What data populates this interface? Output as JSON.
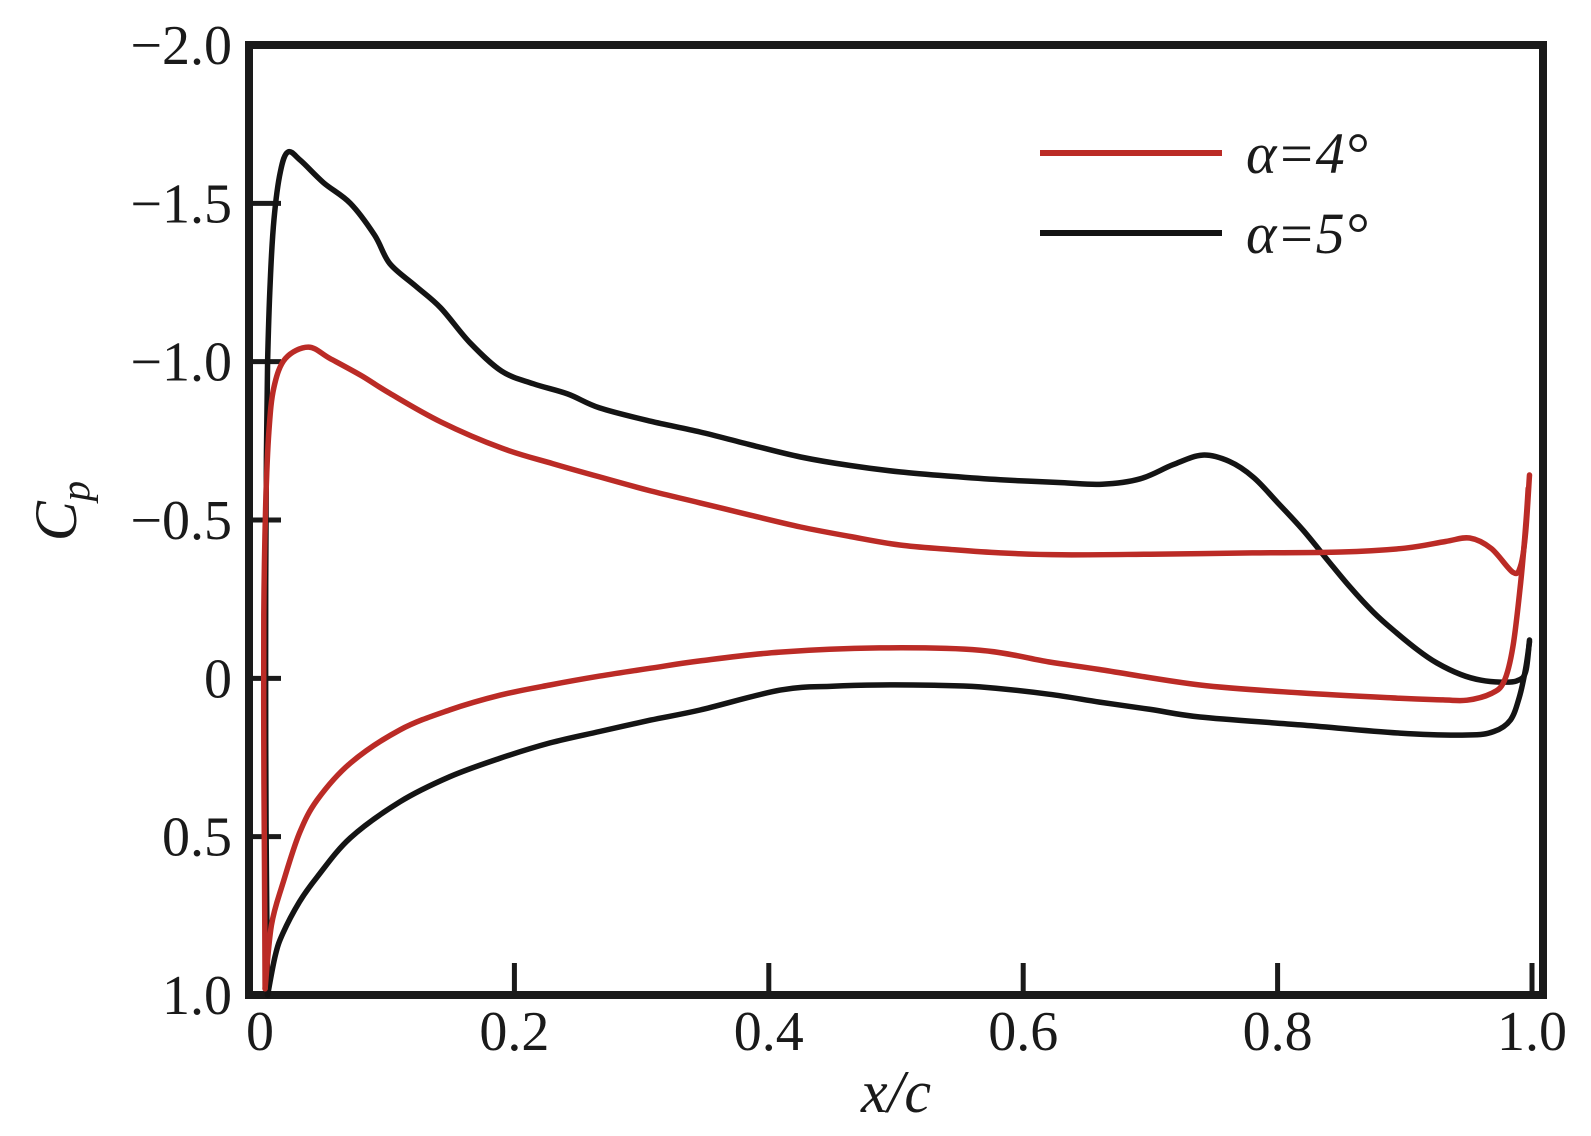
{
  "figure": {
    "background_color": "#ffffff",
    "axis_color": "#1a1a1a"
  },
  "chart_data": {
    "type": "line",
    "title": "",
    "xlabel": "x/c",
    "ylabel": "Cp",
    "ylabel_main": "C",
    "ylabel_sub": "p",
    "grid": false,
    "legend_position": "upper right",
    "x_axis": {
      "min": 0,
      "max": 1,
      "ticks": [
        {
          "value": 0,
          "label": "0",
          "mark": false
        },
        {
          "value": 0.2,
          "label": "0.2",
          "mark": true
        },
        {
          "value": 0.4,
          "label": "0.4",
          "mark": true
        },
        {
          "value": 0.6,
          "label": "0.6",
          "mark": true
        },
        {
          "value": 0.8,
          "label": "0.8",
          "mark": true
        },
        {
          "value": 1.0,
          "label": "1.0",
          "mark": true
        }
      ]
    },
    "y_axis": {
      "min": -2.0,
      "max": 1.0,
      "inverted": true,
      "ticks": [
        {
          "value": -2.0,
          "label": "−2.0",
          "mark": false
        },
        {
          "value": -1.5,
          "label": "−1.5",
          "mark": true
        },
        {
          "value": -1.0,
          "label": "−1.0",
          "mark": true
        },
        {
          "value": -0.5,
          "label": "−0.5",
          "mark": true
        },
        {
          "value": 0,
          "label": "0",
          "mark": true
        },
        {
          "value": 0.5,
          "label": "0.5",
          "mark": true
        },
        {
          "value": 1.0,
          "label": "1.0",
          "mark": false
        }
      ]
    },
    "series": [
      {
        "name": "α=4°",
        "color": "#bb2b26",
        "upper_surface": [
          [
            0.004,
            0.98
          ],
          [
            0.0035,
            0.6
          ],
          [
            0.003,
            0.2
          ],
          [
            0.003,
            -0.2
          ],
          [
            0.0045,
            -0.55
          ],
          [
            0.007,
            -0.78
          ],
          [
            0.011,
            -0.92
          ],
          [
            0.02,
            -1.01
          ],
          [
            0.038,
            -1.046
          ],
          [
            0.055,
            -1.01
          ],
          [
            0.08,
            -0.955
          ],
          [
            0.102,
            -0.9
          ],
          [
            0.142,
            -0.81
          ],
          [
            0.19,
            -0.727
          ],
          [
            0.23,
            -0.678
          ],
          [
            0.267,
            -0.636
          ],
          [
            0.307,
            -0.592
          ],
          [
            0.346,
            -0.554
          ],
          [
            0.386,
            -0.515
          ],
          [
            0.425,
            -0.478
          ],
          [
            0.464,
            -0.448
          ],
          [
            0.503,
            -0.421
          ],
          [
            0.543,
            -0.407
          ],
          [
            0.582,
            -0.396
          ],
          [
            0.63,
            -0.39
          ],
          [
            0.7,
            -0.392
          ],
          [
            0.78,
            -0.396
          ],
          [
            0.85,
            -0.399
          ],
          [
            0.9,
            -0.411
          ],
          [
            0.932,
            -0.432
          ],
          [
            0.951,
            -0.443
          ],
          [
            0.968,
            -0.41
          ],
          [
            0.985,
            -0.335
          ],
          [
            0.991,
            -0.355
          ],
          [
            0.995,
            -0.46
          ],
          [
            0.998,
            -0.642
          ]
        ],
        "lower_surface": [
          [
            0.004,
            0.98
          ],
          [
            0.009,
            0.78
          ],
          [
            0.018,
            0.647
          ],
          [
            0.031,
            0.489
          ],
          [
            0.045,
            0.384
          ],
          [
            0.071,
            0.268
          ],
          [
            0.11,
            0.163
          ],
          [
            0.149,
            0.1
          ],
          [
            0.189,
            0.053
          ],
          [
            0.228,
            0.021
          ],
          [
            0.267,
            -0.007
          ],
          [
            0.307,
            -0.032
          ],
          [
            0.346,
            -0.055
          ],
          [
            0.409,
            -0.083
          ],
          [
            0.487,
            -0.096
          ],
          [
            0.566,
            -0.089
          ],
          [
            0.62,
            -0.052
          ],
          [
            0.66,
            -0.028
          ],
          [
            0.739,
            0.021
          ],
          [
            0.818,
            0.046
          ],
          [
            0.896,
            0.063
          ],
          [
            0.93,
            0.068
          ],
          [
            0.949,
            0.069
          ],
          [
            0.968,
            0.048
          ],
          [
            0.978,
            0.01
          ],
          [
            0.985,
            -0.1
          ],
          [
            0.991,
            -0.3
          ],
          [
            0.995,
            -0.48
          ],
          [
            0.997,
            -0.6
          ]
        ]
      },
      {
        "name": "α=5°",
        "color": "#141414",
        "upper_surface": [
          [
            0.006,
            1.0
          ],
          [
            0.005,
            0.6
          ],
          [
            0.0045,
            0.2
          ],
          [
            0.0045,
            -0.3
          ],
          [
            0.005,
            -0.7
          ],
          [
            0.006,
            -1.0
          ],
          [
            0.008,
            -1.25
          ],
          [
            0.011,
            -1.45
          ],
          [
            0.016,
            -1.6
          ],
          [
            0.022,
            -1.662
          ],
          [
            0.032,
            -1.635
          ],
          [
            0.05,
            -1.565
          ],
          [
            0.071,
            -1.5
          ],
          [
            0.09,
            -1.4
          ],
          [
            0.102,
            -1.31
          ],
          [
            0.122,
            -1.24
          ],
          [
            0.142,
            -1.17
          ],
          [
            0.165,
            -1.06
          ],
          [
            0.19,
            -0.97
          ],
          [
            0.215,
            -0.93
          ],
          [
            0.242,
            -0.898
          ],
          [
            0.267,
            -0.854
          ],
          [
            0.307,
            -0.812
          ],
          [
            0.346,
            -0.778
          ],
          [
            0.386,
            -0.737
          ],
          [
            0.425,
            -0.699
          ],
          [
            0.464,
            -0.672
          ],
          [
            0.503,
            -0.652
          ],
          [
            0.543,
            -0.638
          ],
          [
            0.582,
            -0.627
          ],
          [
            0.63,
            -0.618
          ],
          [
            0.662,
            -0.613
          ],
          [
            0.692,
            -0.63
          ],
          [
            0.718,
            -0.675
          ],
          [
            0.741,
            -0.705
          ],
          [
            0.762,
            -0.685
          ],
          [
            0.781,
            -0.635
          ],
          [
            0.8,
            -0.555
          ],
          [
            0.82,
            -0.468
          ],
          [
            0.84,
            -0.37
          ],
          [
            0.857,
            -0.288
          ],
          [
            0.875,
            -0.21
          ],
          [
            0.891,
            -0.152
          ],
          [
            0.91,
            -0.09
          ],
          [
            0.925,
            -0.049
          ],
          [
            0.944,
            -0.012
          ],
          [
            0.96,
            0.006
          ],
          [
            0.975,
            0.012
          ],
          [
            0.988,
            0.008
          ],
          [
            0.995,
            -0.02
          ],
          [
            0.998,
            -0.121
          ]
        ],
        "lower_surface": [
          [
            0.006,
            1.0
          ],
          [
            0.012,
            0.875
          ],
          [
            0.018,
            0.805
          ],
          [
            0.031,
            0.706
          ],
          [
            0.045,
            0.627
          ],
          [
            0.071,
            0.504
          ],
          [
            0.11,
            0.39
          ],
          [
            0.149,
            0.311
          ],
          [
            0.189,
            0.252
          ],
          [
            0.228,
            0.204
          ],
          [
            0.267,
            0.168
          ],
          [
            0.307,
            0.132
          ],
          [
            0.346,
            0.1
          ],
          [
            0.409,
            0.037
          ],
          [
            0.45,
            0.025
          ],
          [
            0.487,
            0.021
          ],
          [
            0.53,
            0.022
          ],
          [
            0.566,
            0.027
          ],
          [
            0.62,
            0.05
          ],
          [
            0.66,
            0.075
          ],
          [
            0.7,
            0.098
          ],
          [
            0.739,
            0.122
          ],
          [
            0.818,
            0.147
          ],
          [
            0.896,
            0.173
          ],
          [
            0.949,
            0.179
          ],
          [
            0.97,
            0.168
          ],
          [
            0.983,
            0.132
          ],
          [
            0.99,
            0.06
          ],
          [
            0.995,
            -0.03
          ],
          [
            0.998,
            -0.115
          ]
        ]
      }
    ]
  }
}
